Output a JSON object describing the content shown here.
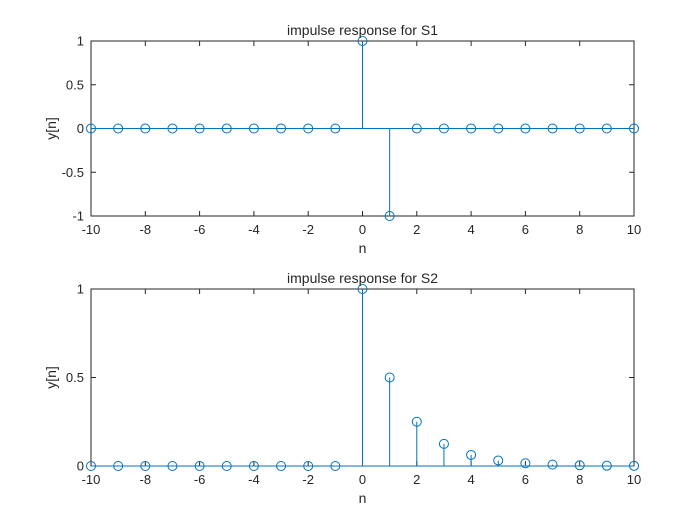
{
  "figure": {
    "background": "#ffffff",
    "axis_color": "#262626",
    "series_color": "#0072bd"
  },
  "chart_data": [
    {
      "type": "stem",
      "title": "impulse response for S1",
      "xlabel": "n",
      "ylabel": "y[n]",
      "xlim": [
        -10,
        10
      ],
      "ylim": [
        -1,
        1
      ],
      "xticks": [
        -10,
        -8,
        -6,
        -4,
        -2,
        0,
        2,
        4,
        6,
        8,
        10
      ],
      "yticks": [
        -1,
        -0.5,
        0,
        0.5,
        1
      ],
      "grid": false,
      "x": [
        -10,
        -9,
        -8,
        -7,
        -6,
        -5,
        -4,
        -3,
        -2,
        -1,
        0,
        1,
        2,
        3,
        4,
        5,
        6,
        7,
        8,
        9,
        10
      ],
      "y": [
        0,
        0,
        0,
        0,
        0,
        0,
        0,
        0,
        0,
        0,
        1,
        -1,
        0,
        0,
        0,
        0,
        0,
        0,
        0,
        0,
        0
      ]
    },
    {
      "type": "stem",
      "title": "impulse response for S2",
      "xlabel": "n",
      "ylabel": "y[n]",
      "xlim": [
        -10,
        10
      ],
      "ylim": [
        0,
        1
      ],
      "xticks": [
        -10,
        -8,
        -6,
        -4,
        -2,
        0,
        2,
        4,
        6,
        8,
        10
      ],
      "yticks": [
        0,
        0.5,
        1
      ],
      "grid": false,
      "x": [
        -10,
        -9,
        -8,
        -7,
        -6,
        -5,
        -4,
        -3,
        -2,
        -1,
        0,
        1,
        2,
        3,
        4,
        5,
        6,
        7,
        8,
        9,
        10
      ],
      "y": [
        0,
        0,
        0,
        0,
        0,
        0,
        0,
        0,
        0,
        0,
        1,
        0.5,
        0.25,
        0.125,
        0.0625,
        0.03125,
        0.015625,
        0.0078125,
        0.00390625,
        0.001953125,
        0.0009765625
      ]
    }
  ]
}
